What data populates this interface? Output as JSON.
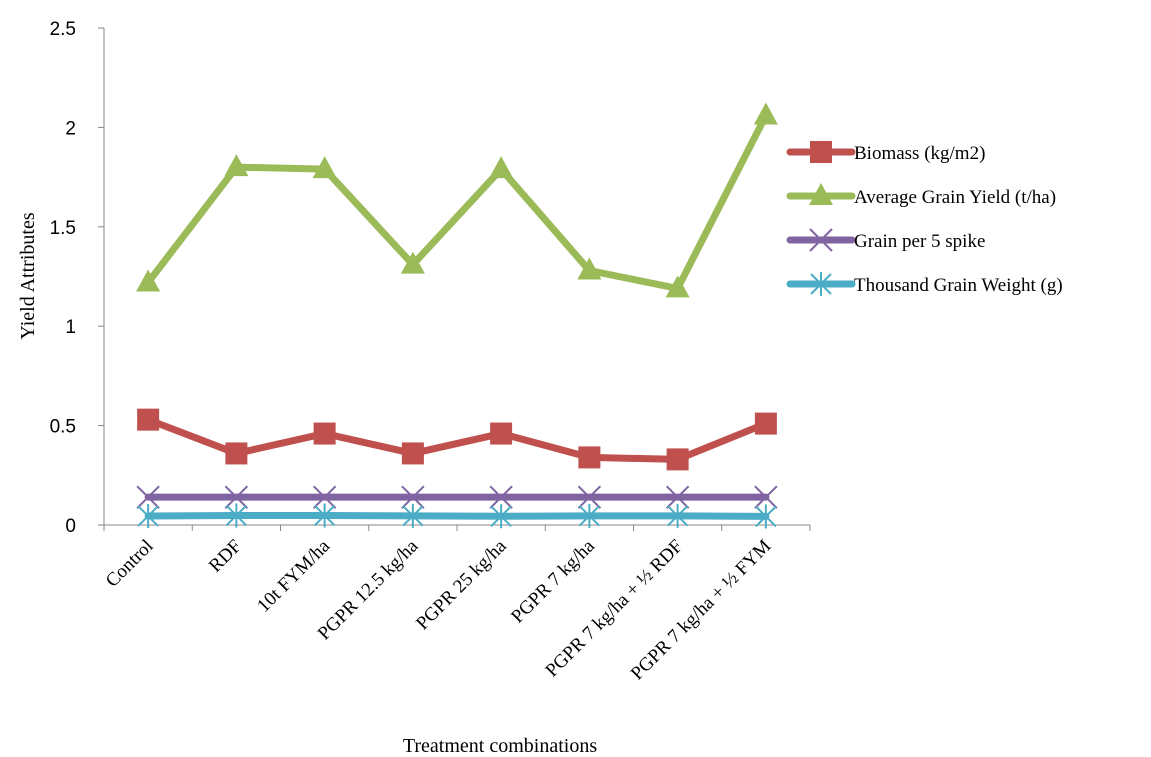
{
  "chart_data": {
    "type": "line",
    "xlabel": "Treatment combinations",
    "ylabel": "Yield Attributes",
    "ylim": [
      0,
      2.5
    ],
    "yticks": [
      "0",
      "0.5",
      "1",
      "1.5",
      "2",
      "2.5"
    ],
    "categories": [
      "Control",
      "RDF",
      "10t FYM/ha",
      "PGPR 12.5 kg/ha",
      "PGPR 25 kg/ha",
      "PGPR 7 kg/ha",
      "PGPR 7 kg/ha + ½ RDF",
      "PGPR 7 kg/ha + ½ FYM"
    ],
    "series": [
      {
        "name": "Biomass (kg/m2)",
        "color": "#C0504D",
        "marker": "square",
        "values": [
          0.53,
          0.36,
          0.46,
          0.36,
          0.46,
          0.34,
          0.33,
          0.51
        ]
      },
      {
        "name": "Average Grain Yield (t/ha)",
        "color": "#9BBB59",
        "marker": "triangle",
        "values": [
          1.22,
          1.8,
          1.79,
          1.31,
          1.79,
          1.28,
          1.19,
          2.06
        ]
      },
      {
        "name": "Grain per 5 spike",
        "color": "#8064A2",
        "marker": "x",
        "values": [
          0.14,
          0.14,
          0.14,
          0.14,
          0.14,
          0.14,
          0.14,
          0.14
        ]
      },
      {
        "name": "Thousand Grain Weight (g)",
        "color": "#4BACC6",
        "marker": "star",
        "values": [
          0.045,
          0.048,
          0.048,
          0.046,
          0.044,
          0.046,
          0.046,
          0.043
        ]
      }
    ],
    "grid": false,
    "legend": "right"
  }
}
